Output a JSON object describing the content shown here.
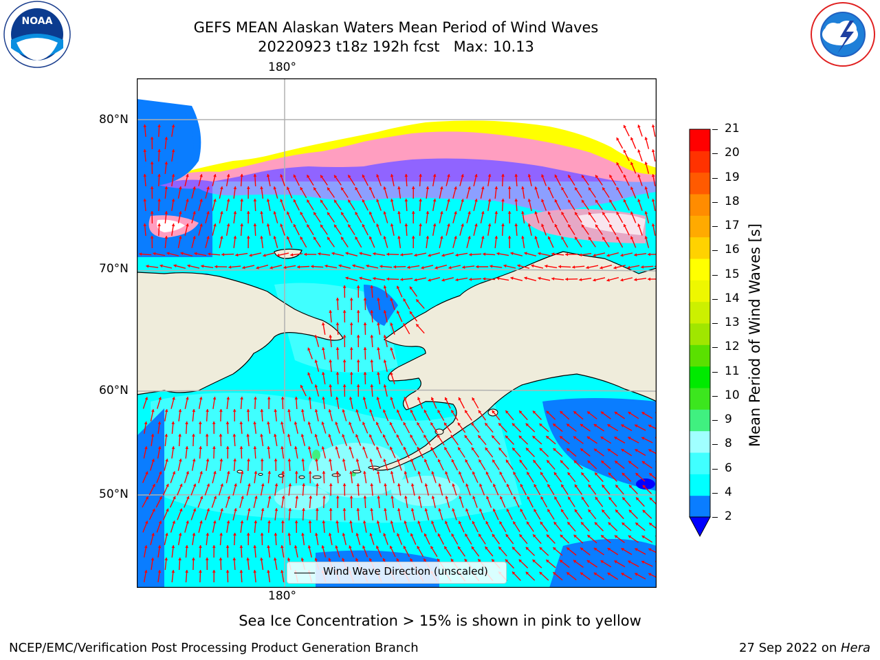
{
  "header": {
    "title_line1": "GEFS MEAN Alaskan Waters Mean Period of Wind Waves",
    "title_line2": "20220923 t18z 192h fcst   Max: 10.13"
  },
  "logos": {
    "noaa_text": "NOAA",
    "noaa_ring": "NATIONAL OCEANIC AND ATMOSPHERIC ADMINISTRATION",
    "noaa_ring_bottom": "U.S. DEPARTMENT OF COMMERCE",
    "nws_ring": "NATIONAL WEATHER SERVICE"
  },
  "map": {
    "lon_label_top": "180°",
    "lon_label_bottom": "180°",
    "lat_labels": [
      "80°N",
      "70°N",
      "60°N",
      "50°N"
    ],
    "legend_label": "Wind Wave Direction (unscaled)",
    "colors": {
      "land": "#efecdb",
      "ocean_base": "#00ffff",
      "ocean_low": "#0a7dff",
      "arrow": "#ff0000",
      "grid": "#b0b0b0"
    }
  },
  "colorbar": {
    "label": "Mean Period of Wind Waves [s]",
    "ticks": [
      "2",
      "4",
      "6",
      "8",
      "9",
      "10",
      "11",
      "12",
      "13",
      "14",
      "15",
      "16",
      "17",
      "18",
      "19",
      "20",
      "21"
    ],
    "colors": [
      "#0000ff",
      "#0a7dff",
      "#00ffff",
      "#40ffff",
      "#a0ffff",
      "#40f080",
      "#3ce61e",
      "#00ea00",
      "#5ae000",
      "#a0e600",
      "#ccf000",
      "#eef700",
      "#ffff00",
      "#ffd200",
      "#ffaa00",
      "#ff8c00",
      "#ff5a00",
      "#ff3200",
      "#ff0000"
    ]
  },
  "footer": {
    "ice_note": "Sea Ice Concentration > 15% is shown in pink to yellow",
    "left": "NCEP/EMC/Verification Post Processing Product Generation Branch",
    "right_prefix": "27 Sep 2022 on ",
    "right_host": "Hera"
  }
}
